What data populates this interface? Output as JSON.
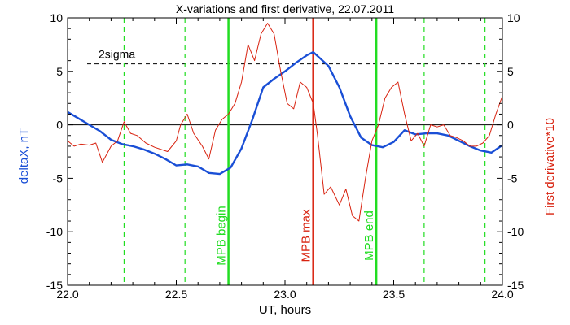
{
  "chart_data": {
    "type": "line",
    "title": "X-variations and first derivative, 22.07.2011",
    "xlabel": "UT, hours",
    "ylabel_left": "deltaX, nT",
    "ylabel_right": "First derivative*10",
    "xlim": [
      22.0,
      24.0
    ],
    "ylim_left": [
      -15,
      10
    ],
    "ylim_right": [
      -15,
      10
    ],
    "x_ticks": [
      "22.0",
      "22.5",
      "23.0",
      "23.5",
      "24.0"
    ],
    "y_ticks_left": [
      "10",
      "5",
      "0",
      "-5",
      "-10",
      "-15"
    ],
    "y_ticks_right": [
      "10",
      "5",
      "0",
      "-5",
      "-10",
      "-15"
    ],
    "colors": {
      "deltaX": "#1a4fd6",
      "derivative": "#d8220f",
      "mpb_green": "#22dd22",
      "mpb_red": "#d8220f",
      "reference": "#000000"
    },
    "sigma": {
      "label": "2sigma",
      "value": 5.7
    },
    "zero_line": 0,
    "series": [
      {
        "axis": "left",
        "x": [
          22.0,
          22.05,
          22.1,
          22.15,
          22.2,
          22.25,
          22.3,
          22.35,
          22.4,
          22.45,
          22.5,
          22.55,
          22.6,
          22.65,
          22.7,
          22.75,
          22.8,
          22.85,
          22.9,
          22.95,
          23.0,
          23.05,
          23.1,
          23.13,
          23.2,
          23.25,
          23.3,
          23.35,
          23.4,
          23.45,
          23.5,
          23.55,
          23.6,
          23.65,
          23.7,
          23.75,
          23.8,
          23.85,
          23.9,
          23.95,
          24.0
        ],
        "values": [
          1.2,
          0.6,
          0.0,
          -0.6,
          -1.4,
          -1.8,
          -2.0,
          -2.3,
          -2.7,
          -3.2,
          -3.8,
          -3.7,
          -3.9,
          -4.5,
          -4.6,
          -4.0,
          -2.2,
          0.5,
          3.5,
          4.3,
          5.0,
          5.8,
          6.5,
          6.8,
          5.5,
          3.5,
          0.8,
          -1.2,
          -1.9,
          -2.1,
          -1.6,
          -0.5,
          -0.9,
          -0.8,
          -0.8,
          -1.0,
          -1.5,
          -2.0,
          -2.4,
          -2.6,
          -1.9
        ]
      },
      {
        "axis": "right",
        "x": [
          22.0,
          22.03,
          22.06,
          22.1,
          22.13,
          22.16,
          22.2,
          22.23,
          22.26,
          22.29,
          22.32,
          22.36,
          22.4,
          22.43,
          22.46,
          22.5,
          22.52,
          22.55,
          22.58,
          22.62,
          22.65,
          22.68,
          22.71,
          22.74,
          22.77,
          22.8,
          22.83,
          22.86,
          22.89,
          22.92,
          22.95,
          22.98,
          23.01,
          23.04,
          23.07,
          23.1,
          23.13,
          23.15,
          23.18,
          23.21,
          23.25,
          23.28,
          23.31,
          23.34,
          23.37,
          23.4,
          23.43,
          23.46,
          23.49,
          23.52,
          23.55,
          23.58,
          23.61,
          23.64,
          23.67,
          23.7,
          23.73,
          23.76,
          23.79,
          23.82,
          23.85,
          23.88,
          23.91,
          23.94,
          23.97,
          24.0
        ],
        "values": [
          -1.5,
          -2.0,
          -1.8,
          -1.9,
          -1.7,
          -3.5,
          -2.0,
          -1.5,
          0.3,
          -0.8,
          -1.0,
          -1.7,
          -2.1,
          -2.3,
          -2.5,
          -1.5,
          0.0,
          1.0,
          -0.8,
          -2.0,
          -3.2,
          -0.5,
          0.5,
          1.0,
          2.0,
          4.0,
          7.5,
          6.0,
          8.5,
          9.5,
          8.5,
          5.0,
          2.0,
          1.5,
          4.0,
          3.5,
          2.0,
          -1.0,
          -6.5,
          -5.8,
          -7.5,
          -6.0,
          -8.5,
          -9.0,
          -5.0,
          -1.5,
          0.0,
          2.5,
          3.5,
          4.0,
          1.0,
          -1.5,
          -0.8,
          -2.0,
          0.0,
          -0.2,
          0.0,
          -1.0,
          -1.2,
          -1.5,
          -2.0,
          -2.0,
          -1.7,
          -1.0,
          1.0,
          2.7
        ]
      }
    ],
    "vertical_lines": [
      {
        "x": 22.26,
        "style": "dashed",
        "color": "green"
      },
      {
        "x": 22.54,
        "style": "dashed",
        "color": "green"
      },
      {
        "x": 22.74,
        "style": "solid",
        "color": "green",
        "label": "MPB begin"
      },
      {
        "x": 23.13,
        "style": "solid",
        "color": "red",
        "label": "MPB max"
      },
      {
        "x": 23.42,
        "style": "solid",
        "color": "green",
        "label": "MPB end"
      },
      {
        "x": 23.64,
        "style": "dashed",
        "color": "green"
      },
      {
        "x": 23.92,
        "style": "dashed",
        "color": "green"
      }
    ],
    "grid": false
  }
}
